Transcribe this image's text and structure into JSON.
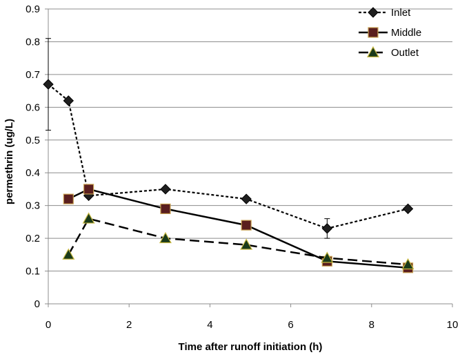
{
  "chart_data": {
    "type": "line",
    "title": "",
    "xlabel": "Time after runoff initiation (h)",
    "ylabel": "permethrin (ug/L)",
    "xlim": [
      0,
      10
    ],
    "ylim": [
      0,
      0.9
    ],
    "xticks": [
      0,
      2,
      4,
      6,
      8,
      10
    ],
    "yticks": [
      0,
      0.1,
      0.2,
      0.3,
      0.4,
      0.5,
      0.6,
      0.7,
      0.8,
      0.9
    ],
    "xtick_labels": [
      "0",
      "2",
      "4",
      "6",
      "8",
      "10"
    ],
    "ytick_labels": [
      "0",
      "0.1",
      "0.2",
      "0.3",
      "0.4",
      "0.5",
      "0.6",
      "0.7",
      "0.8",
      "0.9"
    ],
    "grid": "horizontal",
    "legend_position": "top-right",
    "series": [
      {
        "name": "Inlet",
        "marker": "diamond",
        "line_style": "dotted",
        "color": "#000000",
        "marker_fill": "#1f1f1f",
        "x": [
          0,
          0.5,
          1,
          2.9,
          4.9,
          6.9,
          8.9
        ],
        "y": [
          0.67,
          0.62,
          0.33,
          0.35,
          0.32,
          0.23,
          0.29
        ],
        "error_bars": [
          {
            "x": 0,
            "low": 0.53,
            "high": 0.81
          },
          {
            "x": 6.9,
            "low": 0.2,
            "high": 0.26
          }
        ]
      },
      {
        "name": "Middle",
        "marker": "square",
        "line_style": "solid",
        "color": "#000000",
        "marker_fill": "#5a1e1e",
        "x": [
          0.5,
          1,
          2.9,
          4.9,
          6.9,
          8.9
        ],
        "y": [
          0.32,
          0.35,
          0.29,
          0.24,
          0.13,
          0.11
        ]
      },
      {
        "name": "Outlet",
        "marker": "triangle",
        "line_style": "dashed",
        "color": "#000000",
        "marker_fill": "#1a3a1a",
        "x": [
          0.5,
          1,
          2.9,
          4.9,
          6.9,
          8.9
        ],
        "y": [
          0.15,
          0.26,
          0.2,
          0.18,
          0.14,
          0.12
        ]
      }
    ]
  }
}
